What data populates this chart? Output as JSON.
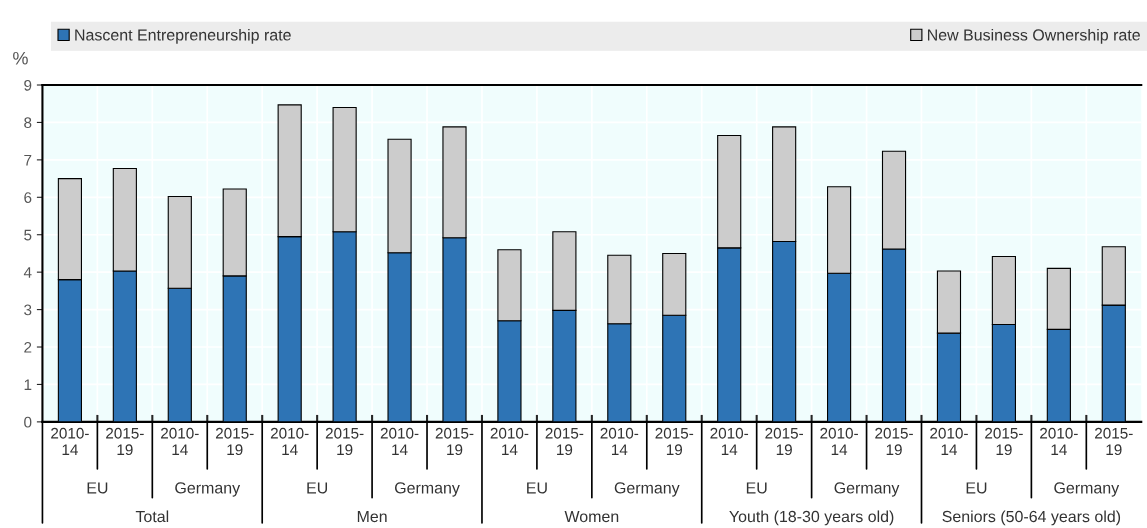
{
  "chart_data": {
    "type": "bar",
    "stacked": true,
    "ylabel": "%",
    "categories": [
      "2010-\n14",
      "2015-\n19",
      "2010-\n14",
      "2015-\n19",
      "2010-\n14",
      "2015-\n19",
      "2010-\n14",
      "2015-\n19",
      "2010-\n14",
      "2015-\n19",
      "2010-\n14",
      "2015-\n19",
      "2010-\n14",
      "2015-\n19",
      "2010-\n14",
      "2015-\n19",
      "2010-\n14",
      "2015-\n19",
      "2010-\n14",
      "2015-\n19"
    ],
    "series": [
      {
        "name": "Nascent Entrepreneurship rate",
        "color": "#2e74b5",
        "values": [
          3.8,
          4.03,
          3.57,
          3.9,
          4.95,
          5.08,
          4.52,
          4.92,
          2.7,
          2.98,
          2.62,
          2.85,
          4.65,
          4.82,
          3.97,
          4.62,
          2.37,
          2.6,
          2.47,
          3.12
        ]
      },
      {
        "name": "New Business Ownership rate",
        "color": "#cccccc",
        "values": [
          2.7,
          2.74,
          2.45,
          2.32,
          3.52,
          3.32,
          3.03,
          2.96,
          1.9,
          2.1,
          1.83,
          1.65,
          3.0,
          3.06,
          2.31,
          2.61,
          1.66,
          1.82,
          1.63,
          1.56
        ]
      }
    ],
    "annotations": [
      "EU",
      "Germany",
      "EU",
      "Germany",
      "EU",
      "Germany",
      "EU",
      "Germany",
      "EU",
      "Germany",
      "Total",
      "Men",
      "Women",
      "Youth (18-30 years old)",
      "Seniors (50-64 years old)"
    ],
    "ylim": [
      0,
      9
    ],
    "yticks": [
      0,
      1,
      2,
      3,
      4,
      5,
      6,
      7,
      8,
      9
    ],
    "grid": true,
    "legend": "top"
  }
}
